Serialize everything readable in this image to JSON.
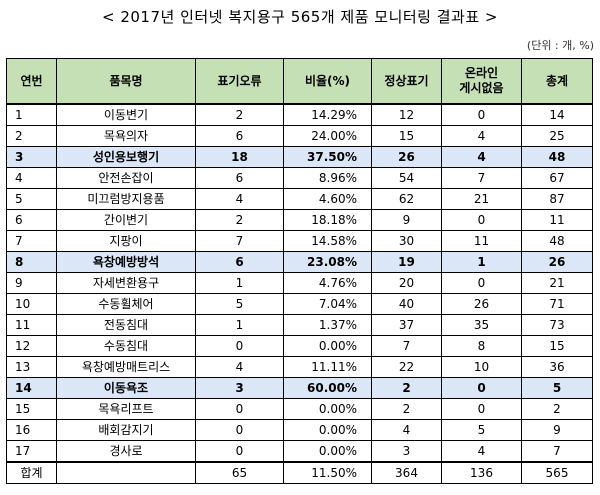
{
  "title": "< 2017년 인터넷 복지용구 565개 제품 모니터링 결과표 >",
  "unit": "(단위 : 개, %)",
  "headers": {
    "no": "연번",
    "item": "품목명",
    "label_error": "표기오류",
    "ratio": "비율(%)",
    "normal": "정상표기",
    "online_line1": "온라인",
    "online_line2": "게시없음",
    "total": "총계"
  },
  "rows": [
    {
      "no": "1",
      "item": "이동변기",
      "err": "2",
      "ratio": "14.29%",
      "normal": "12",
      "online": "0",
      "total": "14",
      "highlight": false
    },
    {
      "no": "2",
      "item": "목욕의자",
      "err": "6",
      "ratio": "24.00%",
      "normal": "15",
      "online": "4",
      "total": "25",
      "highlight": false
    },
    {
      "no": "3",
      "item": "성인용보행기",
      "err": "18",
      "ratio": "37.50%",
      "normal": "26",
      "online": "4",
      "total": "48",
      "highlight": true
    },
    {
      "no": "4",
      "item": "안전손잡이",
      "err": "6",
      "ratio": "8.96%",
      "normal": "54",
      "online": "7",
      "total": "67",
      "highlight": false
    },
    {
      "no": "5",
      "item": "미끄럼방지용품",
      "err": "4",
      "ratio": "4.60%",
      "normal": "62",
      "online": "21",
      "total": "87",
      "highlight": false
    },
    {
      "no": "6",
      "item": "간이변기",
      "err": "2",
      "ratio": "18.18%",
      "normal": "9",
      "online": "0",
      "total": "11",
      "highlight": false
    },
    {
      "no": "7",
      "item": "지팡이",
      "err": "7",
      "ratio": "14.58%",
      "normal": "30",
      "online": "11",
      "total": "48",
      "highlight": false
    },
    {
      "no": "8",
      "item": "욕창예방방석",
      "err": "6",
      "ratio": "23.08%",
      "normal": "19",
      "online": "1",
      "total": "26",
      "highlight": true
    },
    {
      "no": "9",
      "item": "자세변환용구",
      "err": "1",
      "ratio": "4.76%",
      "normal": "20",
      "online": "0",
      "total": "21",
      "highlight": false
    },
    {
      "no": "10",
      "item": "수동휠체어",
      "err": "5",
      "ratio": "7.04%",
      "normal": "40",
      "online": "26",
      "total": "71",
      "highlight": false
    },
    {
      "no": "11",
      "item": "전동침대",
      "err": "1",
      "ratio": "1.37%",
      "normal": "37",
      "online": "35",
      "total": "73",
      "highlight": false
    },
    {
      "no": "12",
      "item": "수동침대",
      "err": "0",
      "ratio": "0.00%",
      "normal": "7",
      "online": "8",
      "total": "15",
      "highlight": false
    },
    {
      "no": "13",
      "item": "욕창예방매트리스",
      "err": "4",
      "ratio": "11.11%",
      "normal": "22",
      "online": "10",
      "total": "36",
      "highlight": false
    },
    {
      "no": "14",
      "item": "이동욕조",
      "err": "3",
      "ratio": "60.00%",
      "normal": "2",
      "online": "0",
      "total": "5",
      "highlight": true
    },
    {
      "no": "15",
      "item": "목욕리프트",
      "err": "0",
      "ratio": "0.00%",
      "normal": "2",
      "online": "0",
      "total": "2",
      "highlight": false
    },
    {
      "no": "16",
      "item": "배회감지기",
      "err": "0",
      "ratio": "0.00%",
      "normal": "4",
      "online": "5",
      "total": "9",
      "highlight": false
    },
    {
      "no": "17",
      "item": "경사로",
      "err": "0",
      "ratio": "0.00%",
      "normal": "3",
      "online": "4",
      "total": "7",
      "highlight": false
    }
  ],
  "total_row": {
    "label": "합계",
    "err": "65",
    "ratio": "11.50%",
    "normal": "364",
    "online": "136",
    "total": "565"
  },
  "colors": {
    "header_bg": "#c5e0b4",
    "highlight_bg": "#dbe7f7"
  }
}
